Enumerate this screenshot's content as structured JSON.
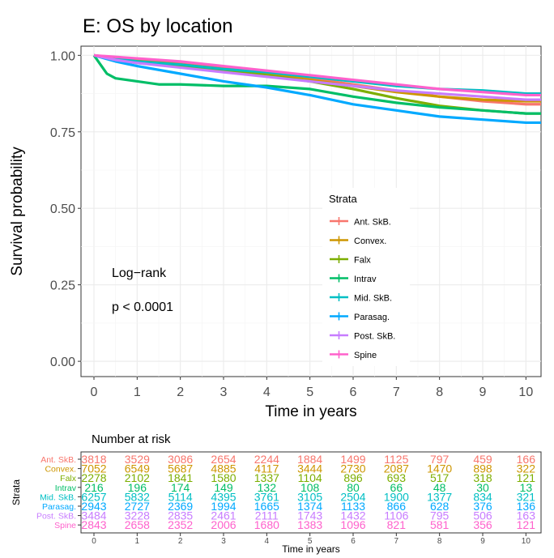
{
  "chart_data": [
    {
      "type": "line",
      "subtype": "kaplan-meier",
      "title": "E: OS by location",
      "xlabel": "Time in years",
      "ylabel": "Survival probability",
      "xlim": [
        -0.3,
        10.35
      ],
      "ylim": [
        -0.05,
        1.03
      ],
      "x_ticks": [
        0,
        1,
        2,
        3,
        4,
        5,
        6,
        7,
        8,
        9,
        10
      ],
      "y_ticks": [
        0.0,
        0.25,
        0.5,
        0.75,
        1.0
      ],
      "y_tick_labels": [
        "0.00",
        "0.25",
        "0.50",
        "0.75",
        "1.00"
      ],
      "grid": true,
      "legend": {
        "title": "Strata",
        "placement": "right-center"
      },
      "annotations": [
        "Log−rank",
        "p < 0.0001"
      ],
      "series": [
        {
          "name": "Ant. SkB.",
          "color": "#F8766D",
          "x": [
            0,
            0.5,
            1,
            2,
            3,
            4,
            5,
            6,
            7,
            8,
            9,
            10,
            10.35
          ],
          "y": [
            1.0,
            0.99,
            0.985,
            0.975,
            0.96,
            0.945,
            0.925,
            0.905,
            0.885,
            0.865,
            0.85,
            0.84,
            0.84
          ]
        },
        {
          "name": "Convex.",
          "color": "#CD9600",
          "x": [
            0,
            0.5,
            1,
            2,
            3,
            4,
            5,
            6,
            7,
            8,
            9,
            10,
            10.35
          ],
          "y": [
            1.0,
            0.99,
            0.985,
            0.97,
            0.955,
            0.94,
            0.92,
            0.9,
            0.88,
            0.865,
            0.855,
            0.85,
            0.85
          ]
        },
        {
          "name": "Falx",
          "color": "#7CAE00",
          "x": [
            0,
            0.5,
            1,
            2,
            3,
            4,
            5,
            6,
            7,
            8,
            9,
            10,
            10.35
          ],
          "y": [
            1.0,
            0.985,
            0.975,
            0.965,
            0.95,
            0.935,
            0.915,
            0.89,
            0.86,
            0.835,
            0.82,
            0.81,
            0.81
          ]
        },
        {
          "name": "Intrav",
          "color": "#00BE67",
          "x": [
            0,
            0.15,
            0.3,
            0.5,
            1,
            1.5,
            2,
            3,
            4,
            5,
            6,
            7,
            8,
            9,
            10,
            10.35
          ],
          "y": [
            1.0,
            0.97,
            0.94,
            0.925,
            0.915,
            0.905,
            0.905,
            0.9,
            0.9,
            0.89,
            0.865,
            0.845,
            0.83,
            0.82,
            0.81,
            0.81
          ]
        },
        {
          "name": "Mid. SkB.",
          "color": "#00BFC4",
          "x": [
            0,
            0.5,
            1,
            2,
            3,
            4,
            5,
            6,
            7,
            8,
            9,
            10,
            10.35
          ],
          "y": [
            1.0,
            0.99,
            0.98,
            0.97,
            0.955,
            0.945,
            0.93,
            0.915,
            0.9,
            0.89,
            0.885,
            0.875,
            0.875
          ]
        },
        {
          "name": "Parasag.",
          "color": "#00A9FF",
          "x": [
            0,
            0.5,
            1,
            2,
            3,
            4,
            5,
            6,
            7,
            8,
            9,
            10,
            10.35
          ],
          "y": [
            1.0,
            0.98,
            0.965,
            0.94,
            0.915,
            0.895,
            0.87,
            0.84,
            0.82,
            0.8,
            0.79,
            0.78,
            0.78
          ]
        },
        {
          "name": "Post. SkB.",
          "color": "#C77CFF",
          "x": [
            0,
            0.5,
            1,
            2,
            3,
            4,
            5,
            6,
            7,
            8,
            9,
            10,
            10.35
          ],
          "y": [
            1.0,
            0.985,
            0.975,
            0.96,
            0.945,
            0.93,
            0.915,
            0.9,
            0.885,
            0.875,
            0.865,
            0.855,
            0.855
          ]
        },
        {
          "name": "Spine",
          "color": "#FF61CC",
          "x": [
            0,
            0.5,
            1,
            2,
            3,
            4,
            5,
            6,
            7,
            8,
            9,
            10,
            10.35
          ],
          "y": [
            1.0,
            0.995,
            0.99,
            0.98,
            0.965,
            0.95,
            0.935,
            0.92,
            0.905,
            0.89,
            0.88,
            0.87,
            0.87
          ]
        }
      ]
    },
    {
      "type": "table",
      "title": "Number at risk",
      "xlabel": "Time in years",
      "ylabel": "Strata",
      "x_ticks": [
        0,
        1,
        2,
        3,
        4,
        5,
        6,
        7,
        8,
        9,
        10
      ],
      "rows": [
        {
          "name": "Ant. SkB.",
          "color": "#F8766D",
          "values": [
            "3818",
            "3529",
            "3086",
            "2654",
            "2244",
            "1884",
            "1499",
            "1125",
            "797",
            "459",
            "166"
          ]
        },
        {
          "name": "Convex.",
          "color": "#CD9600",
          "values": [
            "7052",
            "6549",
            "5687",
            "4885",
            "4117",
            "3444",
            "2730",
            "2087",
            "1470",
            "898",
            "322"
          ]
        },
        {
          "name": "Falx",
          "color": "#7CAE00",
          "values": [
            "2278",
            "2102",
            "1841",
            "1580",
            "1337",
            "1104",
            "896",
            "693",
            "517",
            "318",
            "121"
          ]
        },
        {
          "name": "Intrav",
          "color": "#00BE67",
          "values": [
            "216",
            "196",
            "174",
            "149",
            "132",
            "108",
            "80",
            "66",
            "48",
            "30",
            "13"
          ]
        },
        {
          "name": "Mid. SkB.",
          "color": "#00BFC4",
          "values": [
            "6257",
            "5832",
            "5114",
            "4395",
            "3761",
            "3105",
            "2504",
            "1900",
            "1377",
            "834",
            "321"
          ]
        },
        {
          "name": "Parasag.",
          "color": "#00A9FF",
          "values": [
            "2943",
            "2727",
            "2369",
            "1994",
            "1665",
            "1374",
            "1133",
            "866",
            "628",
            "376",
            "136"
          ]
        },
        {
          "name": "Post. SkB.",
          "color": "#C77CFF",
          "values": [
            "3484",
            "3228",
            "2835",
            "2461",
            "2111",
            "1743",
            "1432",
            "1106",
            "795",
            "506",
            "163"
          ]
        },
        {
          "name": "Spine",
          "color": "#FF61CC",
          "values": [
            "2843",
            "2658",
            "2352",
            "2006",
            "1680",
            "1383",
            "1096",
            "821",
            "581",
            "356",
            "121"
          ]
        }
      ]
    }
  ]
}
